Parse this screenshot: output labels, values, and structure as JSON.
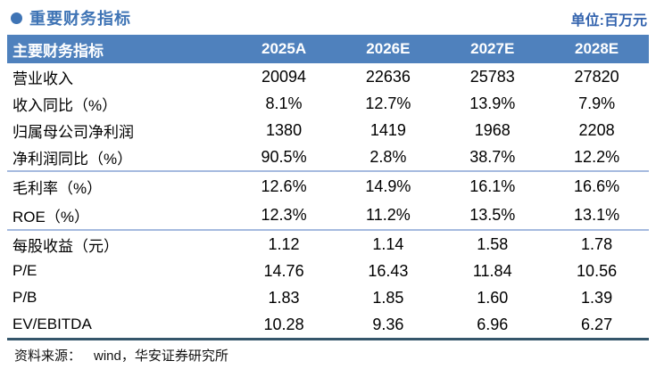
{
  "page": {
    "title": "重要财务指标",
    "unit_label": "单位:百万元",
    "source_label": "资料来源：",
    "source_value": "wind，华安证券研究所"
  },
  "colors": {
    "title_blue": "#3f74b5",
    "unit_blue": "#3464ae",
    "header_bg": "#4f81bd",
    "header_text": "#ffffff",
    "section_divider": "#a5badf",
    "table_bottom_border": "#35566b"
  },
  "table": {
    "header": [
      "主要财务指标",
      "2025A",
      "2026E",
      "2027E",
      "2028E"
    ],
    "groups": [
      {
        "rows": [
          {
            "label": "营业收入",
            "values": [
              "20094",
              "22636",
              "25783",
              "27820"
            ]
          },
          {
            "label": "收入同比（%）",
            "values": [
              "8.1%",
              "12.7%",
              "13.9%",
              "7.9%"
            ]
          },
          {
            "label": "归属母公司净利润",
            "values": [
              "1380",
              "1419",
              "1968",
              "2208"
            ]
          },
          {
            "label": "净利润同比（%）",
            "values": [
              "90.5%",
              "2.8%",
              "38.7%",
              "12.2%"
            ]
          }
        ]
      },
      {
        "rows": [
          {
            "label": "毛利率（%）",
            "values": [
              "12.6%",
              "14.9%",
              "16.1%",
              "16.6%"
            ]
          },
          {
            "label": "ROE（%）",
            "values": [
              "12.3%",
              "11.2%",
              "13.5%",
              "13.1%"
            ]
          }
        ]
      },
      {
        "rows": [
          {
            "label": "每股收益（元）",
            "values": [
              "1.12",
              "1.14",
              "1.58",
              "1.78"
            ]
          },
          {
            "label": "P/E",
            "values": [
              "14.76",
              "16.43",
              "11.84",
              "10.56"
            ]
          },
          {
            "label": "P/B",
            "values": [
              "1.83",
              "1.85",
              "1.60",
              "1.39"
            ]
          },
          {
            "label": "EV/EBITDA",
            "values": [
              "10.28",
              "9.36",
              "6.96",
              "6.27"
            ]
          }
        ]
      }
    ]
  },
  "chart_data": {
    "type": "table",
    "title": "重要财务指标",
    "unit": "百万元",
    "columns": [
      "主要财务指标",
      "2025A",
      "2026E",
      "2027E",
      "2028E"
    ],
    "rows": [
      [
        "营业收入",
        "20094",
        "22636",
        "25783",
        "27820"
      ],
      [
        "收入同比（%）",
        "8.1%",
        "12.7%",
        "13.9%",
        "7.9%"
      ],
      [
        "归属母公司净利润",
        "1380",
        "1419",
        "1968",
        "2208"
      ],
      [
        "净利润同比（%）",
        "90.5%",
        "2.8%",
        "38.7%",
        "12.2%"
      ],
      [
        "毛利率（%）",
        "12.6%",
        "14.9%",
        "16.1%",
        "16.6%"
      ],
      [
        "ROE（%）",
        "12.3%",
        "11.2%",
        "13.5%",
        "13.1%"
      ],
      [
        "每股收益（元）",
        "1.12",
        "1.14",
        "1.58",
        "1.78"
      ],
      [
        "P/E",
        "14.76",
        "16.43",
        "11.84",
        "10.56"
      ],
      [
        "P/B",
        "1.83",
        "1.85",
        "1.60",
        "1.39"
      ],
      [
        "EV/EBITDA",
        "10.28",
        "9.36",
        "6.96",
        "6.27"
      ]
    ],
    "source": "wind，华安证券研究所"
  }
}
